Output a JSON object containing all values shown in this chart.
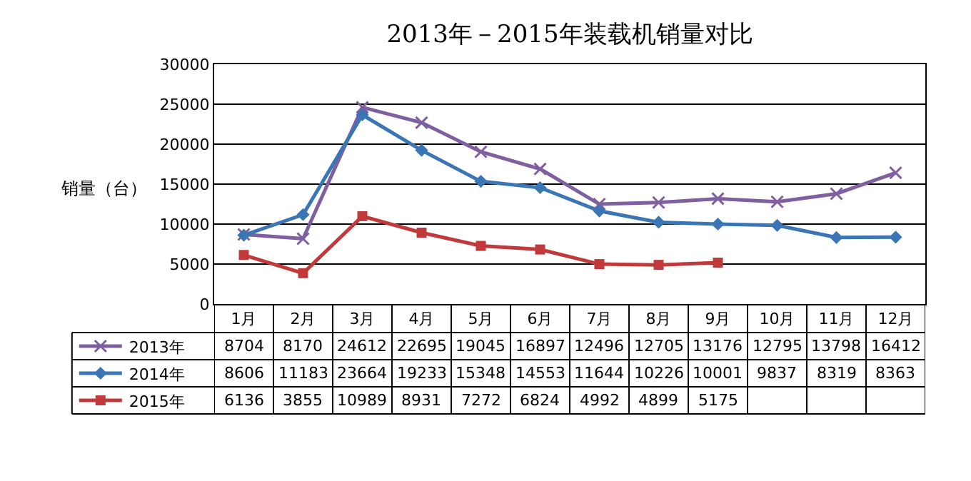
{
  "chart_data": {
    "type": "line",
    "title": "2013年－2015年装载机销量对比",
    "ylabel": "销量（台）",
    "categories": [
      "1月",
      "2月",
      "3月",
      "4月",
      "5月",
      "6月",
      "7月",
      "8月",
      "9月",
      "10月",
      "11月",
      "12月"
    ],
    "series": [
      {
        "name": "2013年",
        "color": "#7f5fa0",
        "marker": "cross",
        "values": [
          8704,
          8170,
          24612,
          22695,
          19045,
          16897,
          12496,
          12705,
          13176,
          12795,
          13798,
          16412
        ]
      },
      {
        "name": "2014年",
        "color": "#3a76b5",
        "marker": "diamond",
        "values": [
          8606,
          11183,
          23664,
          19233,
          15348,
          14553,
          11644,
          10226,
          10001,
          9837,
          8319,
          8363
        ]
      },
      {
        "name": "2015年",
        "color": "#c0393b",
        "marker": "square",
        "values": [
          6136,
          3855,
          10989,
          8931,
          7272,
          6824,
          4992,
          4899,
          5175,
          null,
          null,
          null
        ]
      }
    ],
    "ylim": [
      0,
      30000
    ],
    "yticks": [
      0,
      5000,
      10000,
      15000,
      20000,
      25000,
      30000
    ],
    "grid": "y",
    "legend": "bottom",
    "data_labels": true
  }
}
